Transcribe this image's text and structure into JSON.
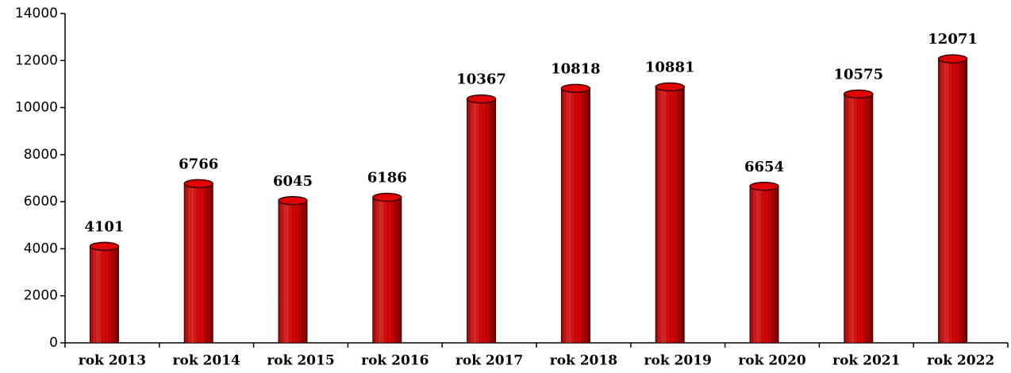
{
  "chart_data": {
    "type": "bar",
    "categories": [
      "rok 2013",
      "rok 2014",
      "rok 2015",
      "rok 2016",
      "rok 2017",
      "rok 2018",
      "rok 2019",
      "rok 2020",
      "rok 2021",
      "rok 2022"
    ],
    "values": [
      4101,
      6766,
      6045,
      6186,
      10367,
      10818,
      10881,
      6654,
      10575,
      12071
    ],
    "color": "#e00000",
    "ylim": [
      0,
      14000
    ],
    "yticks": [
      0,
      2000,
      4000,
      6000,
      8000,
      10000,
      12000,
      14000
    ],
    "grid": false
  }
}
